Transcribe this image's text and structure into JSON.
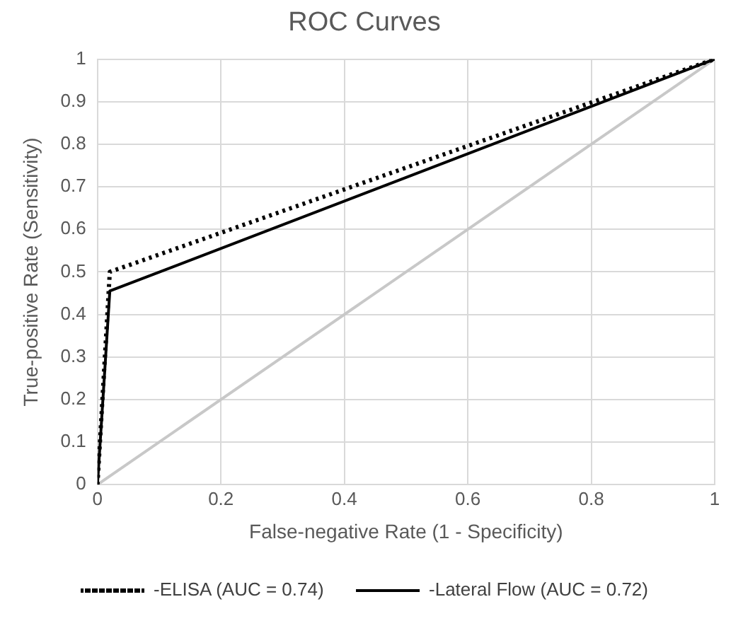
{
  "chart_data": {
    "type": "line",
    "title": "ROC Curves",
    "xlabel": "False-negative Rate (1 - Specificity)",
    "ylabel": "True-positive Rate (Sensitivity)",
    "series": [
      {
        "name": "-ELISA (AUC = 0.74)",
        "color": "#000000",
        "line_style": "dotted",
        "x": [
          0,
          0.02,
          1
        ],
        "values": [
          0,
          0.5,
          1
        ]
      },
      {
        "name": "-Lateral Flow (AUC = 0.72)",
        "color": "#000000",
        "line_style": "solid",
        "x": [
          0,
          0.02,
          1
        ],
        "values": [
          0,
          0.455,
          1
        ]
      },
      {
        "color": "#c8c8c8",
        "line_style": "solid",
        "x": [
          0,
          1
        ],
        "values": [
          0,
          1
        ]
      }
    ],
    "xlim": [
      0,
      1
    ],
    "xticks": [
      0,
      0.2,
      0.4,
      0.6,
      0.8,
      1
    ],
    "ylim": [
      0,
      1
    ],
    "yticks": [
      0,
      0.1,
      0.2,
      0.3,
      0.4,
      0.5,
      0.6,
      0.7,
      0.8,
      0.9,
      1
    ],
    "grid": true,
    "legend": "bottom",
    "marker": "none"
  }
}
